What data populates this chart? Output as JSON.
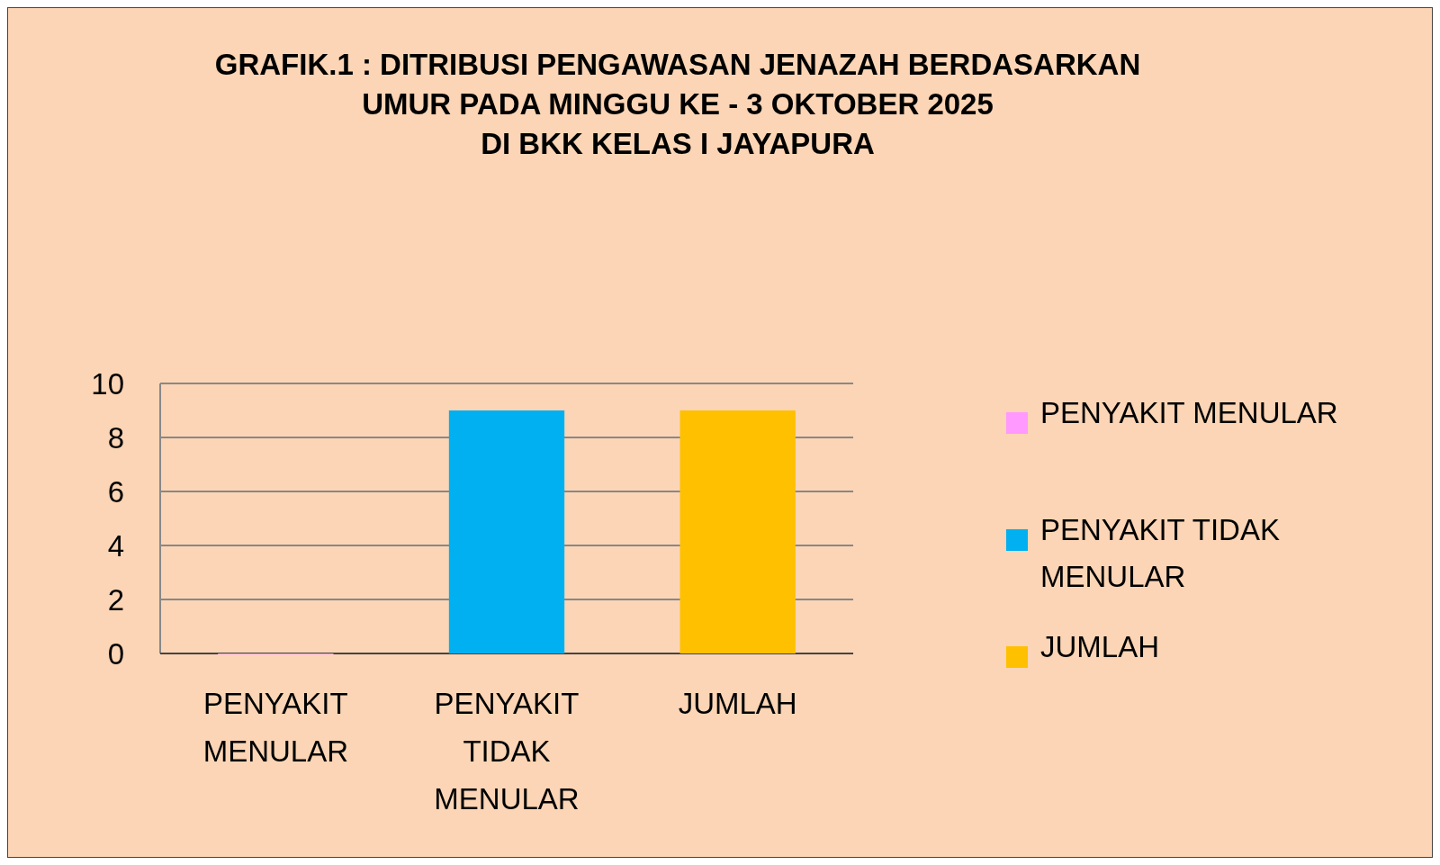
{
  "chart_data": {
    "type": "bar",
    "title": "GRAFIK.1 : DITRIBUSI PENGAWASAN JENAZAH BERDASARKAN\nUMUR  PADA MINGGU KE - 3 OKTOBER 2025\nDI BKK KELAS I JAYAPURA",
    "categories": [
      "PENYAKIT MENULAR",
      "PENYAKIT TIDAK MENULAR",
      "JUMLAH"
    ],
    "series": [
      {
        "name": "PENYAKIT MENULAR",
        "color": "#ff99ff",
        "values": [
          0,
          null,
          null
        ]
      },
      {
        "name": "PENYAKIT TIDAK MENULAR",
        "color": "#00b0f0",
        "values": [
          null,
          9,
          null
        ]
      },
      {
        "name": "JUMLAH",
        "color": "#ffc000",
        "values": [
          null,
          null,
          9
        ]
      }
    ],
    "stacked": true,
    "ylim": [
      0,
      10
    ],
    "yticks": [
      0,
      2,
      4,
      6,
      8,
      10
    ],
    "grid": "y",
    "legend": "right"
  }
}
